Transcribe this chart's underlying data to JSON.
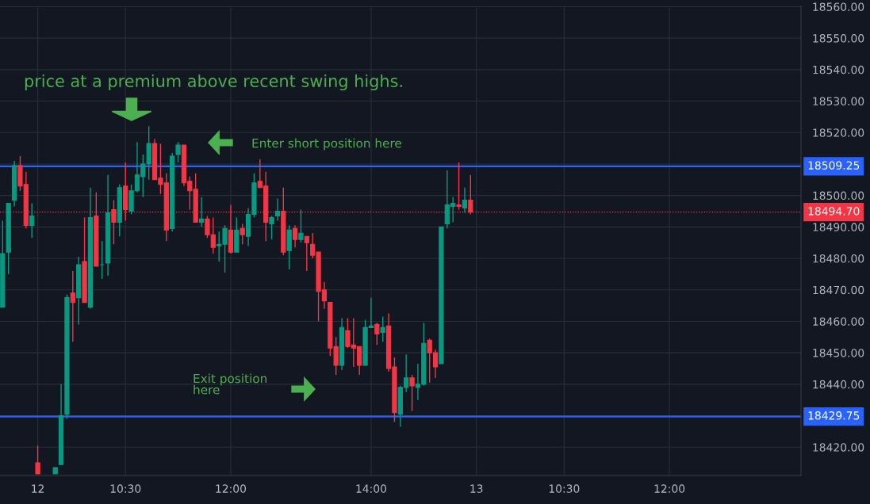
{
  "chart_data": {
    "type": "candlestick",
    "annotations": [
      "price at a premium above recent swing highs.",
      "Enter short position here",
      "Exit position\nhere"
    ],
    "categories": [
      null,
      null,
      null,
      null,
      null,
      null,
      "12",
      null,
      null,
      null,
      null,
      null,
      null,
      null,
      null,
      null,
      null,
      null,
      null,
      null,
      null,
      "10:30",
      null,
      null,
      null,
      null,
      null,
      null,
      null,
      null,
      null,
      null,
      null,
      null,
      null,
      null,
      null,
      null,
      null,
      "12:00",
      null,
      null,
      null,
      null,
      null,
      null,
      null,
      null,
      null,
      null,
      null,
      null,
      null,
      null,
      null,
      null,
      null,
      null,
      null,
      null,
      null,
      null,
      null,
      "14:00",
      null,
      null,
      null,
      null,
      null,
      null,
      null,
      null,
      null,
      null,
      null,
      null,
      null,
      null,
      null,
      null,
      null,
      "13",
      null,
      null,
      null,
      null,
      null,
      null,
      null,
      null,
      null,
      null,
      null,
      null,
      null,
      null,
      "10:30",
      null,
      null,
      null,
      null,
      null,
      null,
      null,
      null,
      null,
      null,
      null,
      null,
      null,
      null,
      null,
      null,
      null,
      "12:00",
      null,
      null,
      null,
      null,
      null,
      null,
      null,
      null,
      null,
      null,
      null,
      null,
      null,
      null,
      null,
      null,
      null,
      null,
      null,
      null,
      null,
      null
    ],
    "ohlc": [
      [
        18464.5,
        18492,
        18464.5,
        18481.5
      ],
      [
        18482,
        18497.5,
        18475,
        18497.5
      ],
      [
        18498.5,
        18511,
        18496.5,
        18509.5
      ],
      [
        18509.5,
        18512.5,
        18501.5,
        18503
      ],
      [
        18503.5,
        18507.5,
        18489.5,
        18490.5
      ],
      [
        18490.5,
        18497.5,
        18486.5,
        18493.5
      ],
      [
        18415,
        18420.5,
        18411.5,
        18411.5
      ],
      null,
      null,
      [
        18411.5,
        18413.5,
        18411.5,
        18413.5
      ],
      [
        18414.5,
        18440,
        18414.5,
        18430
      ],
      [
        18430.5,
        18468.5,
        18429,
        18467.5
      ],
      [
        18469,
        18476,
        18453.5,
        18466
      ],
      [
        18467.5,
        18480.5,
        18459,
        18478
      ],
      [
        18479,
        18493,
        18466,
        18466
      ],
      [
        18464.5,
        18502.5,
        18464,
        18493
      ],
      [
        18493.5,
        18501,
        18477.5,
        18477.5
      ],
      [
        18478,
        18485.5,
        18473.5,
        18478
      ],
      [
        18478.5,
        18506.5,
        18474.5,
        18494.5
      ],
      [
        18495.5,
        18498.5,
        18484.5,
        18491.5
      ],
      [
        18491.5,
        18503.5,
        18487,
        18502.5
      ],
      [
        18503,
        18510.5,
        18492,
        18495.5
      ],
      [
        18495,
        18503.5,
        18494,
        18501.5
      ],
      [
        18501.5,
        18517,
        18501,
        18506.5
      ],
      [
        18506,
        18513,
        18499.5,
        18510
      ],
      [
        18510,
        18522,
        18505,
        18516.5
      ],
      [
        18516.5,
        18518,
        18505,
        18505
      ],
      [
        18505.5,
        18516.5,
        18500.5,
        18503.5
      ],
      [
        18504,
        18507,
        18485.5,
        18489
      ],
      [
        18489.5,
        18513.5,
        18488.5,
        18512.5
      ],
      [
        18513,
        18517,
        18510.5,
        18516
      ],
      [
        18516,
        18516,
        18503,
        18504
      ],
      [
        18504.5,
        18506,
        18495.5,
        18501.5
      ],
      [
        18502,
        18507,
        18491.5,
        18491.5
      ],
      [
        18491.5,
        18499.5,
        18490,
        18492.5
      ],
      [
        18492.5,
        18493.5,
        18486.5,
        18487.5
      ],
      [
        18487.5,
        18493,
        18481.5,
        18483.5
      ],
      [
        18484,
        18488.5,
        18479,
        18484.5
      ],
      [
        18484.5,
        18490.5,
        18475.5,
        18489.5
      ],
      [
        18489,
        18497,
        18481.5,
        18482
      ],
      [
        18482,
        18493,
        18482,
        18489
      ],
      [
        18489.5,
        18491,
        18484.5,
        18487.5
      ],
      [
        18487,
        18496,
        18484,
        18494
      ],
      [
        18494,
        18507,
        18493,
        18504
      ],
      [
        18504.5,
        18511.5,
        18502.5,
        18502.5
      ],
      [
        18503,
        18507.5,
        18485.5,
        18491.5
      ],
      [
        18491,
        18493.5,
        18486,
        18493
      ],
      [
        18493.5,
        18499,
        18492,
        18495
      ],
      [
        18495,
        18502.5,
        18481,
        18482
      ],
      [
        18482.5,
        18490.5,
        18476.5,
        18489
      ],
      [
        18489.5,
        18490.5,
        18483.5,
        18486
      ],
      [
        18486,
        18495.5,
        18485,
        18488
      ],
      [
        18487,
        18487,
        18476,
        18485
      ],
      [
        18484.5,
        18488,
        18480,
        18481
      ],
      [
        18482,
        18482,
        18460,
        18469.5
      ],
      [
        18470,
        18472.5,
        18464,
        18466.5
      ],
      [
        18466,
        18466,
        18449,
        18451.5
      ],
      [
        18452,
        18455,
        18443,
        18446
      ],
      [
        18446,
        18461,
        18444.5,
        18458
      ],
      [
        18457,
        18461,
        18451.5,
        18452
      ],
      [
        18452.5,
        18461,
        18445.5,
        18451.5
      ],
      [
        18452,
        18452,
        18443,
        18446
      ],
      [
        18446,
        18460.5,
        18446,
        18458
      ],
      [
        18458,
        18467.5,
        18458,
        18458.5
      ],
      [
        18459,
        18459.5,
        18452.5,
        18456
      ],
      [
        18456.5,
        18461.5,
        18453.5,
        18458
      ],
      [
        18458.5,
        18462.5,
        18444,
        18445
      ],
      [
        18445.5,
        18448.5,
        18428,
        18431
      ],
      [
        18430.5,
        18439.5,
        18426.5,
        18439
      ],
      [
        18439,
        18449.5,
        18437.5,
        18442
      ],
      [
        18442,
        18443,
        18431.5,
        18439.5
      ],
      [
        18439,
        18446.5,
        18435,
        18440
      ],
      [
        18440,
        18459.5,
        18439.5,
        18453
      ],
      [
        18454,
        18454.5,
        18440.5,
        18450
      ],
      [
        18450,
        18451,
        18442,
        18445.5
      ],
      [
        18446.5,
        18490,
        18446.5,
        18490
      ],
      [
        18491,
        18508,
        18489.5,
        18497
      ],
      [
        18496.5,
        18499.5,
        18491.5,
        18497.5
      ],
      [
        18497,
        18510.5,
        18495.5,
        18496.5
      ],
      [
        18496,
        18502.5,
        18494.5,
        18498.5
      ],
      [
        18498.5,
        18506.5,
        18494,
        18494.7
      ],
      null,
      null,
      null,
      null,
      null,
      null,
      null,
      null,
      null,
      null,
      null,
      null,
      null,
      null,
      null,
      null,
      null,
      null,
      null,
      null,
      null,
      null,
      null,
      null,
      null,
      null,
      null,
      null,
      null,
      null,
      null,
      null,
      null,
      null,
      null,
      null,
      null,
      null,
      null,
      null,
      null,
      null,
      null,
      null,
      null,
      null,
      null,
      null,
      null,
      null,
      null,
      null,
      null,
      null,
      null,
      null
    ],
    "colors": [
      "#089981",
      "#089981",
      "#089981",
      "#f23645",
      "#f23645",
      "#089981",
      "#f23645",
      null,
      null,
      "#089981",
      "#089981",
      "#089981",
      "#f23645",
      "#089981",
      "#f23645",
      "#089981",
      "#f23645",
      "#089981",
      "#089981",
      "#f23645",
      "#089981",
      "#f23645",
      "#089981",
      "#089981",
      "#089981",
      "#089981",
      "#f23645",
      "#f23645",
      "#f23645",
      "#089981",
      "#089981",
      "#f23645",
      "#f23645",
      "#f23645",
      "#089981",
      "#f23645",
      "#f23645",
      "#089981",
      "#089981",
      "#f23645",
      "#089981",
      "#f23645",
      "#089981",
      "#089981",
      "#f23645",
      "#f23645",
      "#089981",
      "#089981",
      "#f23645",
      "#089981",
      "#f23645",
      "#089981",
      "#f23645",
      "#f23645",
      "#f23645",
      "#f23645",
      "#f23645",
      "#f23645",
      "#089981",
      "#f23645",
      "#f23645",
      "#f23645",
      "#089981",
      "#089981",
      "#f23645",
      "#089981",
      "#f23645",
      "#f23645",
      "#089981",
      "#089981",
      "#f23645",
      "#089981",
      "#089981",
      "#f23645",
      "#f23645",
      "#089981",
      "#089981",
      "#089981",
      "#f23645",
      "#089981",
      "#f23645",
      null,
      null,
      null,
      null,
      null,
      null,
      null,
      null,
      null,
      null,
      null,
      null,
      null,
      null,
      null,
      null,
      null,
      null,
      null,
      null,
      null,
      null,
      null,
      null,
      null,
      null,
      null,
      null,
      null,
      null,
      null,
      null,
      null,
      null,
      null,
      null,
      null,
      null,
      null,
      null,
      null,
      null,
      null,
      null,
      null,
      null,
      null,
      null,
      null,
      null,
      null,
      null,
      null,
      null,
      null,
      null
    ],
    "ylim": [
      18411,
      18560.2
    ],
    "yticks": [
      {
        "value": 18420,
        "label": "18420.00"
      },
      {
        "value": 18430,
        "label": null
      },
      {
        "value": 18440,
        "label": "18440.00"
      },
      {
        "value": 18450,
        "label": "18450.00"
      },
      {
        "value": 18460,
        "label": "18460.00"
      },
      {
        "value": 18470,
        "label": "18470.00"
      },
      {
        "value": 18480,
        "label": "18480.00"
      },
      {
        "value": 18490,
        "label": "18490.00"
      },
      {
        "value": 18500,
        "label": "18500.00"
      },
      {
        "value": 18510,
        "label": null
      },
      {
        "value": 18520,
        "label": "18520.00"
      },
      {
        "value": 18530,
        "label": "18530.00"
      },
      {
        "value": 18540,
        "label": "18540.00"
      },
      {
        "value": 18550,
        "label": "18550.00"
      },
      {
        "value": 18560,
        "label": "18560.00"
      }
    ],
    "grid": true,
    "ref_lines": [
      {
        "axis": "y",
        "value": 18509.25,
        "label": "18509.25",
        "color": "#2962ff",
        "line_style": "solid"
      },
      {
        "axis": "y",
        "value": 18429.75,
        "label": "18429.75",
        "color": "#2962ff",
        "line_style": "solid"
      },
      {
        "axis": "y",
        "value": 18494.7,
        "label": "18494.70",
        "color": "#f23645",
        "line_style": "dotted"
      }
    ]
  }
}
